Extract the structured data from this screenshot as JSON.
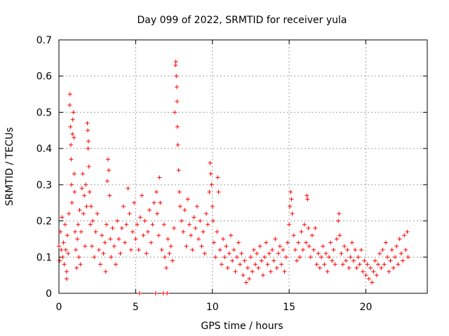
{
  "chart_data": {
    "type": "scatter",
    "title": "Day 099 of 2022, SRMTID for receiver yula",
    "xlabel": "GPS time / hours",
    "ylabel": "SRMTID / TECUs",
    "xlim": [
      0,
      24
    ],
    "ylim": [
      0,
      0.7
    ],
    "xticks": [
      0,
      5,
      10,
      15,
      20
    ],
    "xtick_labels": [
      "0",
      "5",
      "10",
      "15",
      "20"
    ],
    "yticks": [
      0,
      0.1,
      0.2,
      0.3,
      0.4,
      0.5,
      0.6,
      0.7
    ],
    "ytick_labels": [
      "0",
      "0.1",
      "0.2",
      "0.3",
      "0.4",
      "0.5",
      "0.6",
      "0.7"
    ],
    "grid": true,
    "marker": "+",
    "marker_color": "#ff0000",
    "series": [
      {
        "name": "SRMTID",
        "points": [
          [
            0.0,
            0.13
          ],
          [
            0.05,
            0.09
          ],
          [
            0.1,
            0.17
          ],
          [
            0.15,
            0.12
          ],
          [
            0.2,
            0.21
          ],
          [
            0.25,
            0.1
          ],
          [
            0.3,
            0.14
          ],
          [
            0.35,
            0.08
          ],
          [
            0.4,
            0.19
          ],
          [
            0.45,
            0.12
          ],
          [
            0.5,
            0.06
          ],
          [
            0.5,
            0.04
          ],
          [
            0.55,
            0.16
          ],
          [
            0.6,
            0.11
          ],
          [
            0.65,
            0.22
          ],
          [
            0.7,
            0.52
          ],
          [
            0.72,
            0.55
          ],
          [
            0.75,
            0.46
          ],
          [
            0.78,
            0.41
          ],
          [
            0.8,
            0.37
          ],
          [
            0.82,
            0.3
          ],
          [
            0.85,
            0.25
          ],
          [
            0.88,
            0.44
          ],
          [
            0.9,
            0.48
          ],
          [
            0.95,
            0.5
          ],
          [
            0.98,
            0.43
          ],
          [
            1.0,
            0.33
          ],
          [
            1.02,
            0.28
          ],
          [
            1.05,
            0.17
          ],
          [
            1.1,
            0.12
          ],
          [
            1.15,
            0.07
          ],
          [
            1.2,
            0.15
          ],
          [
            1.25,
            0.19
          ],
          [
            1.3,
            0.1
          ],
          [
            1.35,
            0.23
          ],
          [
            1.4,
            0.08
          ],
          [
            1.45,
            0.17
          ],
          [
            1.5,
            0.29
          ],
          [
            1.55,
            0.33
          ],
          [
            1.6,
            0.22
          ],
          [
            1.65,
            0.27
          ],
          [
            1.7,
            0.13
          ],
          [
            1.75,
            0.3
          ],
          [
            1.8,
            0.24
          ],
          [
            1.85,
            0.47
          ],
          [
            1.88,
            0.45
          ],
          [
            1.9,
            0.4
          ],
          [
            1.92,
            0.42
          ],
          [
            1.95,
            0.35
          ],
          [
            2.0,
            0.28
          ],
          [
            2.05,
            0.19
          ],
          [
            2.1,
            0.24
          ],
          [
            2.15,
            0.13
          ],
          [
            2.2,
            0.2
          ],
          [
            2.3,
            0.1
          ],
          [
            2.4,
            0.17
          ],
          [
            2.5,
            0.22
          ],
          [
            2.6,
            0.12
          ],
          [
            2.7,
            0.08
          ],
          [
            2.8,
            0.16
          ],
          [
            2.9,
            0.11
          ],
          [
            3.0,
            0.14
          ],
          [
            3.05,
            0.06
          ],
          [
            3.1,
            0.19
          ],
          [
            3.15,
            0.31
          ],
          [
            3.2,
            0.37
          ],
          [
            3.25,
            0.34
          ],
          [
            3.3,
            0.27
          ],
          [
            3.35,
            0.15
          ],
          [
            3.4,
            0.1
          ],
          [
            3.5,
            0.18
          ],
          [
            3.6,
            0.13
          ],
          [
            3.7,
            0.08
          ],
          [
            3.8,
            0.2
          ],
          [
            3.9,
            0.15
          ],
          [
            4.0,
            0.11
          ],
          [
            4.1,
            0.18
          ],
          [
            4.2,
            0.24
          ],
          [
            4.3,
            0.14
          ],
          [
            4.4,
            0.19
          ],
          [
            4.5,
            0.29
          ],
          [
            4.6,
            0.22
          ],
          [
            4.7,
            0.12
          ],
          [
            4.8,
            0.17
          ],
          [
            4.9,
            0.25
          ],
          [
            5.0,
            0.15
          ],
          [
            5.1,
            0.19
          ],
          [
            5.2,
            0.12
          ],
          [
            5.25,
            0.0
          ],
          [
            5.3,
            0.21
          ],
          [
            5.4,
            0.27
          ],
          [
            5.5,
            0.16
          ],
          [
            5.6,
            0.2
          ],
          [
            5.7,
            0.11
          ],
          [
            5.8,
            0.17
          ],
          [
            5.9,
            0.23
          ],
          [
            6.0,
            0.14
          ],
          [
            6.1,
            0.19
          ],
          [
            6.2,
            0.25
          ],
          [
            6.3,
            0.0
          ],
          [
            6.35,
            0.28
          ],
          [
            6.4,
            0.22
          ],
          [
            6.5,
            0.16
          ],
          [
            6.55,
            0.32
          ],
          [
            6.6,
            0.25
          ],
          [
            6.7,
            0.12
          ],
          [
            6.8,
            0.0
          ],
          [
            6.85,
            0.19
          ],
          [
            6.9,
            0.1
          ],
          [
            7.0,
            0.07
          ],
          [
            7.05,
            0.0
          ],
          [
            7.1,
            0.15
          ],
          [
            7.2,
            0.11
          ],
          [
            7.3,
            0.13
          ],
          [
            7.4,
            0.09
          ],
          [
            7.5,
            0.18
          ],
          [
            7.55,
            0.5
          ],
          [
            7.6,
            0.63
          ],
          [
            7.62,
            0.64
          ],
          [
            7.65,
            0.6
          ],
          [
            7.68,
            0.57
          ],
          [
            7.7,
            0.53
          ],
          [
            7.72,
            0.46
          ],
          [
            7.75,
            0.41
          ],
          [
            7.8,
            0.34
          ],
          [
            7.85,
            0.28
          ],
          [
            7.9,
            0.24
          ],
          [
            8.0,
            0.2
          ],
          [
            8.1,
            0.17
          ],
          [
            8.2,
            0.23
          ],
          [
            8.3,
            0.13
          ],
          [
            8.4,
            0.26
          ],
          [
            8.5,
            0.19
          ],
          [
            8.6,
            0.16
          ],
          [
            8.7,
            0.12
          ],
          [
            8.8,
            0.21
          ],
          [
            8.9,
            0.18
          ],
          [
            9.0,
            0.24
          ],
          [
            9.1,
            0.15
          ],
          [
            9.2,
            0.2
          ],
          [
            9.3,
            0.13
          ],
          [
            9.4,
            0.17
          ],
          [
            9.5,
            0.11
          ],
          [
            9.6,
            0.22
          ],
          [
            9.7,
            0.19
          ],
          [
            9.8,
            0.28
          ],
          [
            9.85,
            0.36
          ],
          [
            9.9,
            0.33
          ],
          [
            9.95,
            0.3
          ],
          [
            10.0,
            0.24
          ],
          [
            10.05,
            0.2
          ],
          [
            10.1,
            0.14
          ],
          [
            10.2,
            0.1
          ],
          [
            10.3,
            0.17
          ],
          [
            10.35,
            0.32
          ],
          [
            10.4,
            0.28
          ],
          [
            10.5,
            0.12
          ],
          [
            10.6,
            0.08
          ],
          [
            10.7,
            0.15
          ],
          [
            10.8,
            0.1
          ],
          [
            10.9,
            0.13
          ],
          [
            11.0,
            0.07
          ],
          [
            11.1,
            0.11
          ],
          [
            11.2,
            0.16
          ],
          [
            11.3,
            0.09
          ],
          [
            11.4,
            0.12
          ],
          [
            11.5,
            0.06
          ],
          [
            11.6,
            0.1
          ],
          [
            11.7,
            0.14
          ],
          [
            11.8,
            0.08
          ],
          [
            11.9,
            0.11
          ],
          [
            12.0,
            0.05
          ],
          [
            12.1,
            0.09
          ],
          [
            12.2,
            0.03
          ],
          [
            12.3,
            0.07
          ],
          [
            12.4,
            0.04
          ],
          [
            12.5,
            0.1
          ],
          [
            12.6,
            0.06
          ],
          [
            12.7,
            0.12
          ],
          [
            12.8,
            0.08
          ],
          [
            12.9,
            0.11
          ],
          [
            13.0,
            0.07
          ],
          [
            13.1,
            0.13
          ],
          [
            13.2,
            0.09
          ],
          [
            13.3,
            0.05
          ],
          [
            13.4,
            0.1
          ],
          [
            13.5,
            0.14
          ],
          [
            13.6,
            0.08
          ],
          [
            13.7,
            0.11
          ],
          [
            13.8,
            0.06
          ],
          [
            13.9,
            0.12
          ],
          [
            14.0,
            0.09
          ],
          [
            14.1,
            0.15
          ],
          [
            14.2,
            0.07
          ],
          [
            14.3,
            0.11
          ],
          [
            14.4,
            0.13
          ],
          [
            14.5,
            0.08
          ],
          [
            14.6,
            0.12
          ],
          [
            14.7,
            0.06
          ],
          [
            14.8,
            0.1
          ],
          [
            14.9,
            0.14
          ],
          [
            15.0,
            0.19
          ],
          [
            15.05,
            0.24
          ],
          [
            15.1,
            0.28
          ],
          [
            15.15,
            0.26
          ],
          [
            15.2,
            0.22
          ],
          [
            15.3,
            0.16
          ],
          [
            15.4,
            0.12
          ],
          [
            15.5,
            0.09
          ],
          [
            15.6,
            0.14
          ],
          [
            15.7,
            0.1
          ],
          [
            15.8,
            0.17
          ],
          [
            15.9,
            0.12
          ],
          [
            16.0,
            0.19
          ],
          [
            16.1,
            0.14
          ],
          [
            16.15,
            0.27
          ],
          [
            16.2,
            0.26
          ],
          [
            16.25,
            0.18
          ],
          [
            16.3,
            0.13
          ],
          [
            16.4,
            0.1
          ],
          [
            16.5,
            0.16
          ],
          [
            16.6,
            0.12
          ],
          [
            16.7,
            0.18
          ],
          [
            16.8,
            0.08
          ],
          [
            16.9,
            0.11
          ],
          [
            17.0,
            0.07
          ],
          [
            17.1,
            0.1
          ],
          [
            17.2,
            0.13
          ],
          [
            17.3,
            0.08
          ],
          [
            17.4,
            0.11
          ],
          [
            17.5,
            0.06
          ],
          [
            17.6,
            0.1
          ],
          [
            17.7,
            0.14
          ],
          [
            17.8,
            0.09
          ],
          [
            17.9,
            0.12
          ],
          [
            18.0,
            0.08
          ],
          [
            18.1,
            0.15
          ],
          [
            18.2,
            0.2
          ],
          [
            18.25,
            0.22
          ],
          [
            18.3,
            0.16
          ],
          [
            18.4,
            0.11
          ],
          [
            18.5,
            0.08
          ],
          [
            18.6,
            0.13
          ],
          [
            18.7,
            0.09
          ],
          [
            18.8,
            0.12
          ],
          [
            18.9,
            0.07
          ],
          [
            19.0,
            0.1
          ],
          [
            19.1,
            0.14
          ],
          [
            19.2,
            0.09
          ],
          [
            19.3,
            0.12
          ],
          [
            19.4,
            0.07
          ],
          [
            19.5,
            0.1
          ],
          [
            19.6,
            0.08
          ],
          [
            19.7,
            0.12
          ],
          [
            19.8,
            0.06
          ],
          [
            19.9,
            0.09
          ],
          [
            20.0,
            0.05
          ],
          [
            20.1,
            0.08
          ],
          [
            20.2,
            0.04
          ],
          [
            20.3,
            0.07
          ],
          [
            20.4,
            0.03
          ],
          [
            20.5,
            0.06
          ],
          [
            20.6,
            0.09
          ],
          [
            20.7,
            0.05
          ],
          [
            20.8,
            0.08
          ],
          [
            20.9,
            0.11
          ],
          [
            21.0,
            0.07
          ],
          [
            21.1,
            0.12
          ],
          [
            21.2,
            0.08
          ],
          [
            21.3,
            0.14
          ],
          [
            21.4,
            0.1
          ],
          [
            21.5,
            0.06
          ],
          [
            21.6,
            0.09
          ],
          [
            21.7,
            0.12
          ],
          [
            21.8,
            0.07
          ],
          [
            21.9,
            0.1
          ],
          [
            22.0,
            0.13
          ],
          [
            22.1,
            0.08
          ],
          [
            22.2,
            0.15
          ],
          [
            22.3,
            0.11
          ],
          [
            22.4,
            0.09
          ],
          [
            22.5,
            0.16
          ],
          [
            22.6,
            0.12
          ],
          [
            22.7,
            0.17
          ],
          [
            22.75,
            0.1
          ]
        ]
      }
    ]
  }
}
